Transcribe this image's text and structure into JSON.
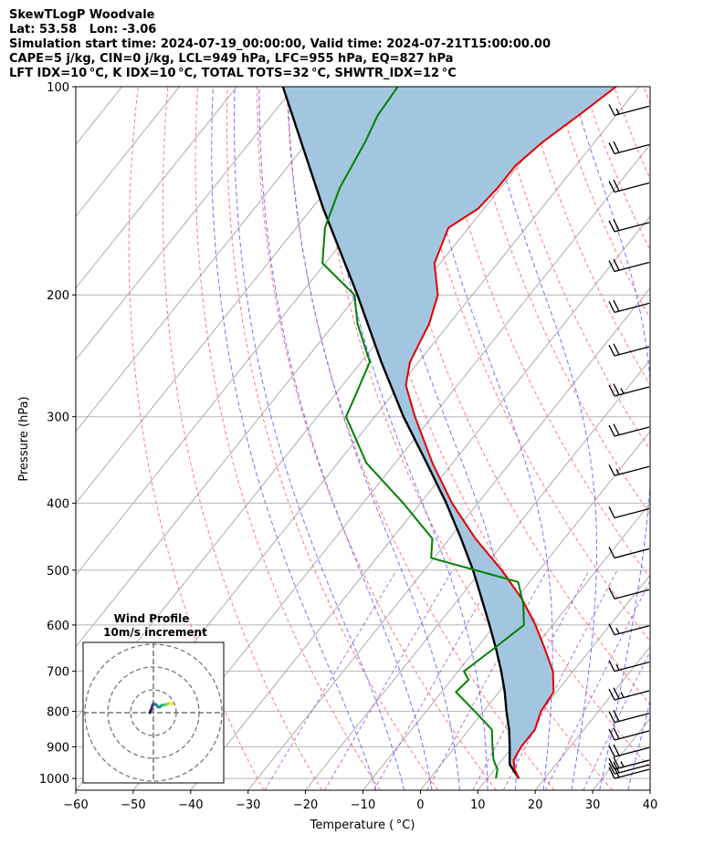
{
  "header": {
    "line1": "SkewTLogP Woodvale",
    "line2": "Lat: 53.58   Lon: -3.06",
    "line3": "Simulation start time: 2024-07-19_00:00:00, Valid time: 2024-07-21T15:00:00.00",
    "line4": "CAPE=5 j/kg, CIN=0 j/kg, LCL=949 hPa, LFC=955 hPa, EQ=827 hPa",
    "line5": "LFT IDX=10 °C, K IDX=10 °C, TOTAL TOTS=32 °C, SHWTR_IDX=12 °C"
  },
  "chart_data": {
    "type": "line",
    "xlabel": "Temperature ( °C)",
    "ylabel": "Pressure (hPa)",
    "xlim": [
      -60,
      40
    ],
    "ylim": [
      1040,
      100
    ],
    "y_scale": "log",
    "x_ticks": [
      "−60",
      "−50",
      "−40",
      "−30",
      "−20",
      "−10",
      "0",
      "10",
      "20",
      "30",
      "40"
    ],
    "y_ticks": [
      "1000",
      "900",
      "800",
      "700",
      "600",
      "500",
      "400",
      "300",
      "200",
      "100"
    ],
    "grid": true,
    "colors": {
      "temperature": "#e00000",
      "dewpoint": "#008000",
      "parcel": "#000000",
      "cape_fill": "#a3c6e0",
      "isotherm": "#aaaaaa",
      "dry_adiabat": "#ff6a6a",
      "moist_adiabat": "#5a5aff",
      "mixing_ratio": "#9b30c9"
    },
    "series": [
      {
        "key": "temperature",
        "pressure": [
          1000,
          970,
          940,
          900,
          850,
          800,
          750,
          700,
          650,
          600,
          550,
          500,
          450,
          400,
          350,
          300,
          270,
          250,
          220,
          200,
          180,
          160,
          150,
          140,
          130,
          120,
          110,
          100
        ],
        "values": [
          15.5,
          13.5,
          12.0,
          11.5,
          11.5,
          10.0,
          9.5,
          6.5,
          2.0,
          -3.0,
          -9.0,
          -16.5,
          -25.5,
          -34.5,
          -43.5,
          -53.0,
          -59.0,
          -61.5,
          -63.5,
          -66.0,
          -71.0,
          -73.5,
          -71.0,
          -70.5,
          -70.5,
          -69.0,
          -66.5,
          -64.0
        ]
      },
      {
        "key": "dewpoint",
        "pressure": [
          1000,
          970,
          940,
          900,
          850,
          800,
          750,
          720,
          700,
          650,
          600,
          560,
          520,
          480,
          450,
          400,
          350,
          300,
          270,
          250,
          220,
          200,
          180,
          160,
          140,
          120,
          110,
          100
        ],
        "values": [
          11.5,
          10.5,
          8.5,
          6.5,
          4.0,
          -1.5,
          -7.5,
          -7.0,
          -9.0,
          -7.0,
          -5.0,
          -8.0,
          -12.0,
          -30.5,
          -33.0,
          -43.0,
          -55.0,
          -65.0,
          -67.0,
          -68.5,
          -76.0,
          -80.5,
          -90.5,
          -95.0,
          -98.0,
          -100.0,
          -101.5,
          -102.0
        ]
      },
      {
        "key": "parcel",
        "pressure": [
          1000,
          955,
          949,
          900,
          850,
          800,
          750,
          700,
          650,
          600,
          550,
          500,
          450,
          400,
          350,
          300,
          250,
          200,
          150,
          100
        ],
        "values": [
          15.5,
          12.0,
          11.7,
          9.5,
          7.0,
          4.0,
          1.0,
          -2.5,
          -6.5,
          -11.0,
          -16.0,
          -21.5,
          -28.0,
          -35.5,
          -44.5,
          -55.0,
          -66.5,
          -80.0,
          -98.0,
          -122.0
        ]
      }
    ],
    "barbs": [
      {
        "p": 1000,
        "speed_kt": 20
      },
      {
        "p": 985,
        "speed_kt": 20
      },
      {
        "p": 970,
        "speed_kt": 25
      },
      {
        "p": 930,
        "speed_kt": 20
      },
      {
        "p": 880,
        "speed_kt": 20
      },
      {
        "p": 830,
        "speed_kt": 20
      },
      {
        "p": 770,
        "speed_kt": 25
      },
      {
        "p": 700,
        "speed_kt": 15
      },
      {
        "p": 620,
        "speed_kt": 15
      },
      {
        "p": 550,
        "speed_kt": 10
      },
      {
        "p": 480,
        "speed_kt": 10
      },
      {
        "p": 420,
        "speed_kt": 10
      },
      {
        "p": 365,
        "speed_kt": 15
      },
      {
        "p": 320,
        "speed_kt": 20
      },
      {
        "p": 280,
        "speed_kt": 25
      },
      {
        "p": 245,
        "speed_kt": 20
      },
      {
        "p": 212,
        "speed_kt": 20
      },
      {
        "p": 185,
        "speed_kt": 20
      },
      {
        "p": 162,
        "speed_kt": 20
      },
      {
        "p": 142,
        "speed_kt": 20
      },
      {
        "p": 125,
        "speed_kt": 20
      },
      {
        "p": 110,
        "speed_kt": 15
      }
    ],
    "wind_profile_inset": {
      "title_line1": "Wind Profile",
      "title_line2": "10m/s increment",
      "u": [
        -10.5,
        -10.0,
        -9.5,
        -9.0,
        -8.5,
        -8.0,
        -7.0,
        -6.0,
        -5.0,
        -4.0,
        -3.0,
        -2.0,
        -1.0,
        0.0,
        1.0,
        2.0
      ],
      "v": [
        0.0,
        0.5,
        1.2,
        2.0,
        2.5,
        2.3,
        2.2,
        1.6,
        1.5,
        2.0,
        2.1,
        2.2,
        2.3,
        2.5,
        2.5,
        2.3
      ]
    }
  }
}
